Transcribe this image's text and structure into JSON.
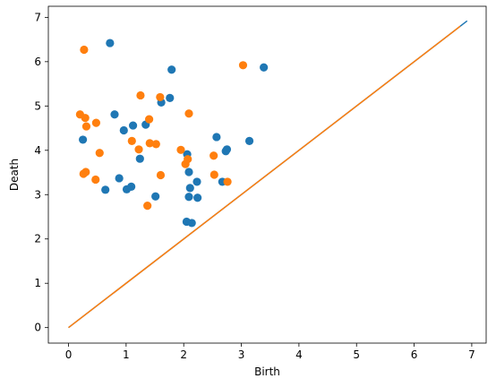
{
  "chart_data": {
    "type": "scatter",
    "title": "",
    "xlabel": "Birth",
    "ylabel": "Death",
    "xlim": [
      -0.35,
      7.25
    ],
    "ylim": [
      -0.35,
      7.25
    ],
    "xticks": [
      0,
      1,
      2,
      3,
      4,
      5,
      6,
      7
    ],
    "yticks": [
      0,
      1,
      2,
      3,
      4,
      5,
      6,
      7
    ],
    "grid": false,
    "colors": {
      "series_0": "#1f77b4",
      "series_1": "#ff7f0e",
      "diagonal": "#ff7f0e",
      "diagonal_under": "#1f77b4"
    },
    "series": [
      {
        "points": [
          [
            0.72,
            6.42
          ],
          [
            1.79,
            5.82
          ],
          [
            3.39,
            5.87
          ],
          [
            0.8,
            4.81
          ],
          [
            1.12,
            4.56
          ],
          [
            1.34,
            4.58
          ],
          [
            1.61,
            5.08
          ],
          [
            1.76,
            5.18
          ],
          [
            0.96,
            4.45
          ],
          [
            0.25,
            4.24
          ],
          [
            1.24,
            3.81
          ],
          [
            2.06,
            3.91
          ],
          [
            2.57,
            4.3
          ],
          [
            2.75,
            4.02
          ],
          [
            2.73,
            3.98
          ],
          [
            3.14,
            4.21
          ],
          [
            2.09,
            3.51
          ],
          [
            0.88,
            3.37
          ],
          [
            0.64,
            3.11
          ],
          [
            1.01,
            3.12
          ],
          [
            1.09,
            3.18
          ],
          [
            1.51,
            2.96
          ],
          [
            2.11,
            3.15
          ],
          [
            2.23,
            3.29
          ],
          [
            2.09,
            2.95
          ],
          [
            2.24,
            2.93
          ],
          [
            2.67,
            3.29
          ],
          [
            2.05,
            2.39
          ],
          [
            2.14,
            2.36
          ]
        ]
      },
      {
        "points": [
          [
            0.27,
            6.27
          ],
          [
            3.03,
            5.92
          ],
          [
            1.25,
            5.24
          ],
          [
            1.59,
            5.2
          ],
          [
            0.2,
            4.81
          ],
          [
            0.29,
            4.73
          ],
          [
            2.09,
            4.83
          ],
          [
            0.48,
            4.62
          ],
          [
            0.31,
            4.54
          ],
          [
            1.4,
            4.7
          ],
          [
            1.1,
            4.21
          ],
          [
            1.41,
            4.16
          ],
          [
            1.52,
            4.14
          ],
          [
            1.22,
            4.02
          ],
          [
            1.95,
            4.01
          ],
          [
            0.54,
            3.94
          ],
          [
            2.52,
            3.88
          ],
          [
            2.07,
            3.8
          ],
          [
            2.03,
            3.69
          ],
          [
            0.3,
            3.51
          ],
          [
            0.26,
            3.47
          ],
          [
            1.6,
            3.44
          ],
          [
            2.53,
            3.45
          ],
          [
            0.47,
            3.34
          ],
          [
            2.76,
            3.29
          ],
          [
            1.37,
            2.75
          ]
        ]
      }
    ],
    "diagonal": [
      [
        0,
        0
      ],
      [
        6.92,
        6.92
      ]
    ]
  }
}
